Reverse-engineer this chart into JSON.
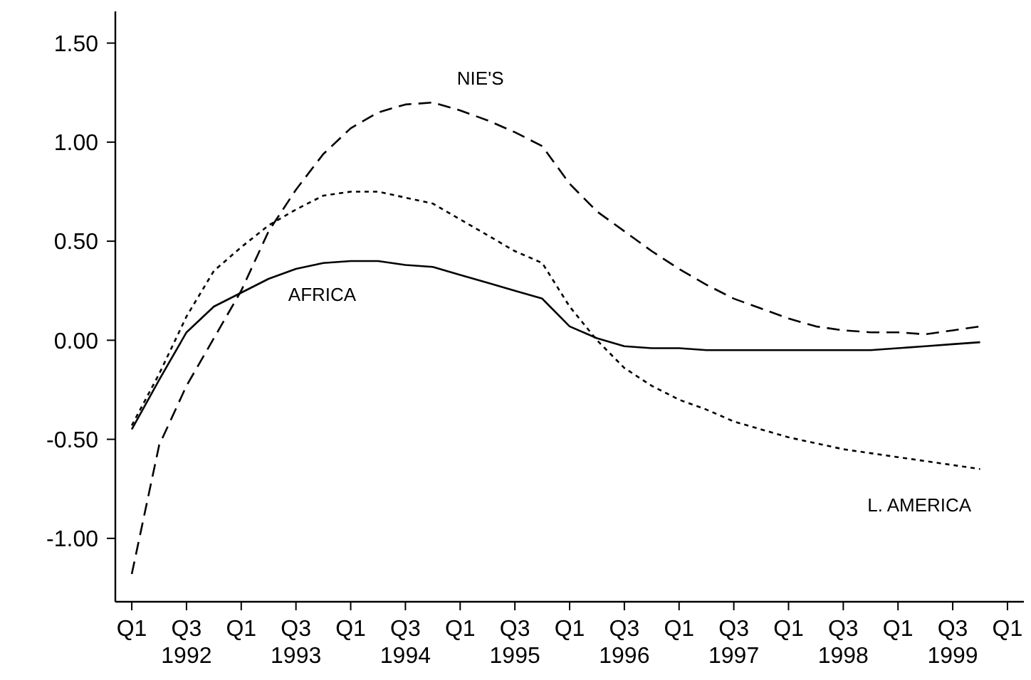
{
  "chart_data": {
    "type": "line",
    "ylim": [
      -1.32,
      1.66
    ],
    "categories": [
      "Q1",
      null,
      "Q3\n1992",
      null,
      "Q1",
      null,
      "Q3\n1993",
      null,
      "Q1",
      null,
      "Q3\n1994",
      null,
      "Q1",
      null,
      "Q3\n1995",
      null,
      "Q1",
      null,
      "Q3\n1996",
      null,
      "Q1",
      null,
      "Q3\n1997",
      null,
      "Q1",
      null,
      "Q3\n1998",
      null,
      "Q1",
      null,
      "Q3\n1999",
      null,
      "Q1"
    ],
    "yticks": [
      {
        "value": -1,
        "label": "-1.00"
      },
      {
        "value": -0.5,
        "label": "-0.50"
      },
      {
        "value": 0,
        "label": "0.00"
      },
      {
        "value": 0.5,
        "label": "0.50"
      },
      {
        "value": 1,
        "label": "1.00"
      },
      {
        "value": 1.5,
        "label": "1.50"
      }
    ],
    "grid": false,
    "marker": "none",
    "series": [
      {
        "name": "AFRICA",
        "color": "#000000",
        "line_style": "solid",
        "values": [
          -0.45,
          -0.2,
          0.04,
          0.17,
          0.24,
          0.31,
          0.36,
          0.39,
          0.4,
          0.4,
          0.38,
          0.37,
          0.33,
          0.29,
          0.25,
          0.21,
          0.07,
          0.01,
          -0.03,
          -0.04,
          -0.04,
          -0.05,
          -0.05,
          -0.05,
          -0.05,
          -0.05,
          -0.05,
          -0.05,
          -0.04,
          -0.03,
          -0.02,
          -0.01,
          null
        ]
      },
      {
        "name": "NIE'S",
        "color": "#000000",
        "line_style": "dashed",
        "values": [
          -1.18,
          -0.53,
          -0.23,
          0.01,
          0.25,
          0.55,
          0.76,
          0.94,
          1.07,
          1.15,
          1.19,
          1.2,
          1.16,
          1.11,
          1.05,
          0.98,
          0.79,
          0.65,
          0.55,
          0.45,
          0.36,
          0.28,
          0.21,
          0.16,
          0.11,
          0.07,
          0.05,
          0.04,
          0.04,
          0.03,
          0.05,
          0.07,
          null
        ]
      },
      {
        "name": "L. AMERICA",
        "color": "#000000",
        "line_style": "dotted",
        "values": [
          -0.43,
          -0.17,
          0.12,
          0.35,
          0.47,
          0.58,
          0.66,
          0.73,
          0.75,
          0.75,
          0.72,
          0.69,
          0.61,
          0.53,
          0.45,
          0.39,
          0.17,
          0.0,
          -0.14,
          -0.23,
          -0.3,
          -0.35,
          -0.41,
          -0.45,
          -0.49,
          -0.52,
          -0.55,
          -0.57,
          -0.59,
          -0.61,
          -0.63,
          -0.65,
          null
        ]
      }
    ]
  }
}
